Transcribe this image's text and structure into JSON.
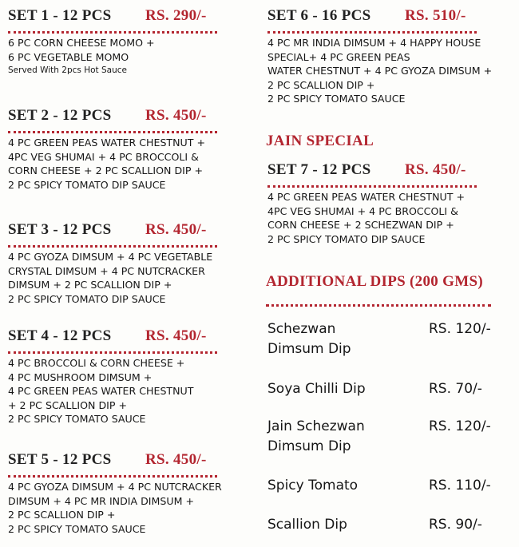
{
  "sets": [
    {
      "title": "SET 1 - 12 PCS",
      "price": "RS. 290/-",
      "lines": [
        "6 PC CORN CHEESE MOMO +",
        "6 PC VEGETABLE MOMO"
      ],
      "note": "Served With 2pcs Hot Sauce"
    },
    {
      "title": "SET 2 - 12 PCS",
      "price": "RS. 450/-",
      "lines": [
        "4 PC GREEN PEAS WATER CHESTNUT +",
        "4PC VEG SHUMAI + 4 PC BROCCOLI &",
        "CORN CHEESE + 2 PC SCALLION DIP +",
        "2 PC SPICY TOMATO DIP SAUCE"
      ]
    },
    {
      "title": "SET 3 - 12 PCS",
      "price": "RS. 450/-",
      "lines": [
        "4 PC GYOZA DIMSUM + 4 PC VEGETABLE",
        "CRYSTAL DIMSUM + 4 PC NUTCRACKER",
        "DIMSUM + 2 PC SCALLION DIP +",
        "2 PC SPICY TOMATO DIP SAUCE"
      ]
    },
    {
      "title": "SET 4 - 12 PCS",
      "price": "RS. 450/-",
      "lines": [
        "4 PC BROCCOLI & CORN CHEESE +",
        "4 PC MUSHROOM DIMSUM +",
        "4 PC GREEN PEAS WATER CHESTNUT",
        "+ 2 PC SCALLION DIP +",
        "2 PC SPICY TOMATO SAUCE"
      ]
    },
    {
      "title": "SET 5 - 12 PCS",
      "price": "RS. 450/-",
      "lines": [
        "4 PC GYOZA DIMSUM + 4 PC NUTCRACKER",
        "DIMSUM + 4 PC MR INDIA DIMSUM +",
        "2 PC SCALLION DIP +",
        "2 PC SPICY TOMATO SAUCE"
      ]
    },
    {
      "title": "SET 6 - 16 PCS",
      "price": "RS. 510/-",
      "lines": [
        "4 PC MR INDIA DIMSUM + 4 HAPPY HOUSE",
        "SPECIAL+ 4 PC GREEN PEAS",
        "WATER CHESTNUT + 4 PC GYOZA DIMSUM +",
        "2 PC  SCALLION DIP +",
        "2 PC SPICY TOMATO SAUCE"
      ]
    },
    {
      "title": "SET 7 - 12 PCS",
      "price": "RS. 450/-",
      "lines": [
        "4 PC GREEN PEAS WATER CHESTNUT +",
        "4PC VEG SHUMAI + 4 PC BROCCOLI &",
        "CORN CHEESE + 2 SCHEZWAN DIP +",
        "2 PC SPICY TOMATO DIP SAUCE"
      ]
    }
  ],
  "jain_special": "JAIN SPECIAL",
  "additional_dips": {
    "title": "ADDITIONAL DIPS (200 GMS)",
    "items": [
      {
        "name": [
          "Schezwan",
          "Dimsum Dip"
        ],
        "price": "RS. 120/-"
      },
      {
        "name": [
          "Soya Chilli Dip"
        ],
        "price": "RS. 70/-"
      },
      {
        "name": [
          "Jain Schezwan",
          "Dimsum Dip"
        ],
        "price": "RS. 120/-"
      },
      {
        "name": [
          "Spicy Tomato"
        ],
        "price": "RS. 110/-"
      },
      {
        "name": [
          "Scallion Dip"
        ],
        "price": "RS. 90/-"
      }
    ]
  }
}
